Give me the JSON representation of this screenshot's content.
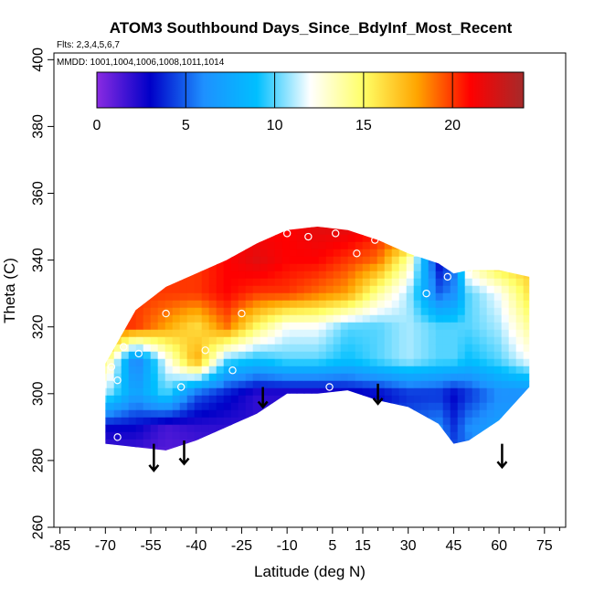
{
  "chart_data": {
    "type": "heatmap",
    "title": "ATOM3 Southbound Days_Since_BdyInf_Most_Recent",
    "flights_label": "Flts: 2,3,4,5,6,7",
    "dates_label": "MMDD: 1001,1004,1006,1008,1011,1014",
    "xlabel": "Latitude (deg N)",
    "ylabel": "Theta (C)",
    "xlim": [
      -87,
      82
    ],
    "ylim": [
      260,
      402
    ],
    "xticks": [
      -85,
      -70,
      -55,
      -40,
      -25,
      -10,
      5,
      15,
      30,
      45,
      60,
      75
    ],
    "xticks_minor": [
      -80,
      -75,
      -65,
      -60,
      -50,
      -45,
      -35,
      -30,
      -20,
      -15,
      -5,
      0,
      10,
      20,
      25,
      35,
      40,
      50,
      55,
      65,
      70,
      80
    ],
    "yticks": [
      260,
      280,
      300,
      320,
      340,
      360,
      380,
      400
    ],
    "colorbar": {
      "min": 0,
      "max": 24,
      "ticks": [
        0,
        5,
        10,
        15,
        20
      ],
      "colors": [
        "#8a2be2",
        "#0000c8",
        "#1e90ff",
        "#00bfff",
        "#ffffff",
        "#ffff66",
        "#ffa500",
        "#ff0000",
        "#a52a2a"
      ]
    },
    "grid_lat": [
      -70,
      -60,
      -50,
      -40,
      -30,
      -20,
      -10,
      0,
      10,
      20,
      30,
      40,
      45,
      50,
      60,
      70
    ],
    "grid_theta": [
      280,
      290,
      300,
      310,
      320,
      330,
      340,
      350
    ],
    "grid_values": [
      [
        -1,
        1,
        1,
        1,
        2,
        2,
        3,
        4,
        4,
        4,
        5,
        6,
        5,
        -1,
        -1,
        -1
      ],
      [
        -1,
        3,
        1.5,
        2,
        2,
        2,
        3,
        3,
        3,
        4,
        5,
        6,
        4,
        6,
        7,
        -1
      ],
      [
        11,
        7,
        10,
        5,
        3.5,
        2,
        2,
        2,
        2.5,
        3,
        4,
        4,
        3,
        4,
        6,
        6
      ],
      [
        15,
        5,
        12,
        18,
        10,
        9,
        10,
        10,
        9,
        10,
        11,
        10,
        10,
        9,
        10,
        12
      ],
      [
        -1,
        20,
        18,
        16,
        19,
        15,
        12,
        12,
        10,
        10,
        11,
        10,
        10,
        10,
        11,
        14
      ],
      [
        -1,
        20,
        20,
        20,
        21,
        20,
        20,
        19,
        18,
        14,
        11,
        5,
        6,
        10,
        12,
        16
      ],
      [
        -1,
        -1,
        -1,
        20,
        21,
        22,
        21,
        21,
        20,
        19,
        14,
        3,
        5,
        14,
        17,
        -1
      ],
      [
        -1,
        -1,
        -1,
        -1,
        -1,
        -1,
        21,
        22,
        22,
        21,
        -1,
        -1,
        -1,
        -1,
        -1,
        -1
      ]
    ],
    "coverage": {
      "lat": [
        -88,
        -70,
        -60,
        -50,
        -40,
        -30,
        -20,
        -10,
        0,
        10,
        20,
        30,
        40,
        45,
        50,
        60,
        70,
        72
      ],
      "theta_lower": [
        null,
        285,
        284,
        283,
        286,
        290,
        294,
        300,
        300,
        301,
        298,
        296,
        291,
        285,
        286,
        292,
        302,
        null
      ],
      "theta_upper": [
        null,
        309,
        325,
        332,
        336,
        340,
        345,
        349,
        350,
        349,
        346,
        342,
        339,
        336,
        337,
        337,
        335,
        null
      ]
    },
    "obs_points": [
      {
        "lat": -68,
        "theta": 308
      },
      {
        "lat": -66,
        "theta": 304
      },
      {
        "lat": -66,
        "theta": 287
      },
      {
        "lat": -64,
        "theta": 314
      },
      {
        "lat": -60,
        "theta": 329
      },
      {
        "lat": -59,
        "theta": 312
      },
      {
        "lat": -50,
        "theta": 324
      },
      {
        "lat": -45,
        "theta": 302
      },
      {
        "lat": -37,
        "theta": 313
      },
      {
        "lat": -28,
        "theta": 307
      },
      {
        "lat": -25,
        "theta": 324
      },
      {
        "lat": -10,
        "theta": 348
      },
      {
        "lat": -3,
        "theta": 347
      },
      {
        "lat": 4,
        "theta": 302
      },
      {
        "lat": 6,
        "theta": 348
      },
      {
        "lat": 13,
        "theta": 342
      },
      {
        "lat": 19,
        "theta": 346
      },
      {
        "lat": 36,
        "theta": 330
      },
      {
        "lat": 43,
        "theta": 335
      },
      {
        "lat": 50,
        "theta": 337
      },
      {
        "lat": 68,
        "theta": 337
      }
    ],
    "arrows": [
      {
        "lat": -54,
        "theta_top": 285,
        "theta_bottom": 277
      },
      {
        "lat": -44,
        "theta_top": 286,
        "theta_bottom": 279
      },
      {
        "lat": -18,
        "theta_top": 302,
        "theta_bottom": 296
      },
      {
        "lat": 20,
        "theta_top": 303,
        "theta_bottom": 297
      },
      {
        "lat": 61,
        "theta_top": 285,
        "theta_bottom": 278
      }
    ]
  }
}
